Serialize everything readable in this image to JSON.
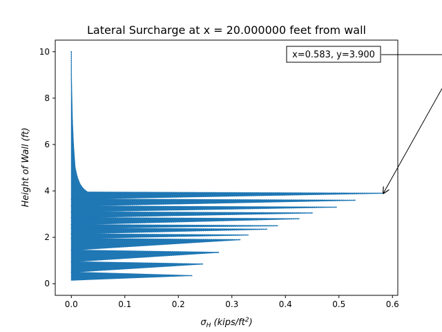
{
  "chart_data": {
    "type": "line",
    "title": "Lateral Surcharge at x = 20.000000 feet from wall",
    "xlabel": "σ",
    "xlabel_sub": "H",
    "xlabel_units_pre": " (kips/ft",
    "xlabel_units_sup": "2",
    "xlabel_units_post": ")",
    "ylabel": "Height of Wall (ft)",
    "xlim": [
      -0.03,
      0.61
    ],
    "ylim": [
      -0.5,
      10.5
    ],
    "xticks": [
      0.0,
      0.1,
      0.2,
      0.3,
      0.4,
      0.5,
      0.6
    ],
    "xtick_labels": [
      "0.0",
      "0.1",
      "0.2",
      "0.3",
      "0.4",
      "0.5",
      "0.6"
    ],
    "yticks": [
      0,
      2,
      4,
      6,
      8,
      10
    ],
    "ytick_labels": [
      "0",
      "2",
      "4",
      "6",
      "8",
      "10"
    ],
    "series_color": "#1f77b4",
    "series_style": "dotted",
    "series": [
      {
        "x": [
          0.0,
          0.0,
          0.001,
          0.002,
          0.004,
          0.007,
          0.011,
          0.016,
          0.022,
          0.03,
          0.583,
          0.0,
          0.53,
          0.0,
          0.495,
          0.0,
          0.45,
          0.0,
          0.425,
          0.0,
          0.385,
          0.0,
          0.365,
          0.0,
          0.33,
          0.0,
          0.315,
          0.0,
          0.275,
          0.0,
          0.245,
          0.0,
          0.225
        ],
        "y": [
          10.0,
          9.0,
          8.0,
          7.0,
          6.0,
          5.0,
          4.6,
          4.3,
          4.1,
          3.95,
          3.9,
          3.65,
          3.6,
          3.35,
          3.3,
          3.1,
          3.05,
          2.85,
          2.8,
          2.55,
          2.5,
          2.4,
          2.35,
          2.15,
          2.1,
          1.95,
          1.9,
          1.45,
          1.35,
          0.95,
          0.85,
          0.5,
          0.35
        ]
      }
    ],
    "annotation": {
      "text": "x=0.583, y=3.900",
      "xy": [
        0.583,
        3.9
      ]
    }
  }
}
